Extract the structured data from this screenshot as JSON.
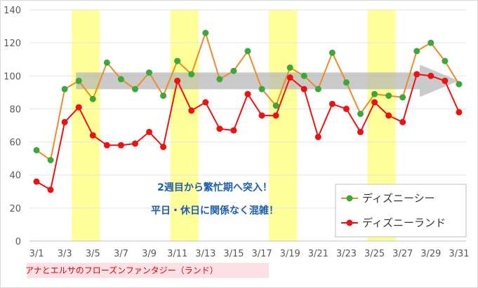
{
  "chart_data": {
    "type": "line",
    "categories": [
      "3/1",
      "3/2",
      "3/3",
      "3/4",
      "3/5",
      "3/6",
      "3/7",
      "3/8",
      "3/9",
      "3/10",
      "3/11",
      "3/12",
      "3/13",
      "3/14",
      "3/15",
      "3/16",
      "3/17",
      "3/18",
      "3/19",
      "3/20",
      "3/21",
      "3/22",
      "3/23",
      "3/24",
      "3/25",
      "3/26",
      "3/27",
      "3/28",
      "3/29",
      "3/30",
      "3/31"
    ],
    "tick_labels": [
      "3/1",
      "3/3",
      "3/5",
      "3/7",
      "3/9",
      "3/11",
      "3/13",
      "3/15",
      "3/17",
      "3/19",
      "3/21",
      "3/23",
      "3/25",
      "3/27",
      "3/29",
      "3/31"
    ],
    "y_ticks": [
      0,
      20,
      40,
      60,
      80,
      100,
      120,
      140
    ],
    "ylim": [
      0,
      140
    ],
    "grid": true,
    "legend_position": "bottom-right",
    "weekend_bands": [
      [
        "3/4",
        "3/5"
      ],
      [
        "3/11",
        "3/12"
      ],
      [
        "3/18",
        "3/19"
      ],
      [
        "3/25",
        "3/26"
      ]
    ],
    "weekend_band_color": "#ffff99",
    "series": [
      {
        "name": "ディズニーシー",
        "line_color": "#f08a24",
        "marker_color": "#3aa83a",
        "values": [
          55,
          49,
          92,
          97,
          86,
          108,
          98,
          92,
          102,
          88,
          109,
          101,
          126,
          98,
          103,
          115,
          92,
          82,
          105,
          100,
          92,
          114,
          96,
          77,
          89,
          88,
          87,
          115,
          120,
          109,
          95
        ]
      },
      {
        "name": "ディズニーランド",
        "line_color": "#ee1111",
        "marker_color": "#ee1111",
        "values": [
          36,
          31,
          72,
          81,
          64,
          58,
          58,
          59,
          66,
          57,
          97,
          79,
          84,
          68,
          67,
          89,
          76,
          76,
          99,
          92,
          63,
          83,
          80,
          66,
          84,
          76,
          72,
          101,
          100,
          97,
          78
        ]
      }
    ],
    "trend_arrow": {
      "from": "3/4",
      "to": "3/31",
      "value": 97,
      "color": "#b3b3b3"
    },
    "annotations": [
      "2週目から繁忙期へ突入！",
      "平日・休日に関係なく混雑！"
    ],
    "caption": "アナとエルサのフローズンファンタジー（ランド）",
    "caption_band": [
      "3/1",
      "3/17"
    ],
    "caption_band_color": "#fbe1e6"
  }
}
